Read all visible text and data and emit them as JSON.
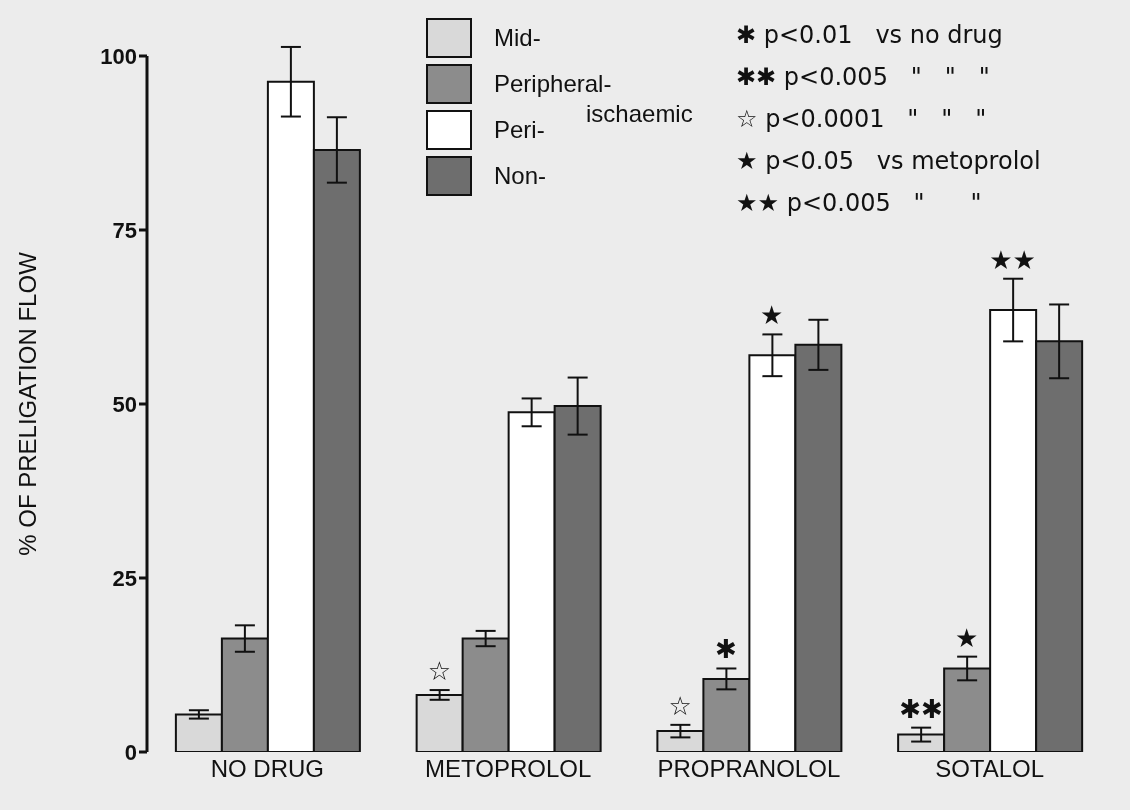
{
  "chart_data": {
    "type": "bar",
    "ylabel": "% OF PRELIGATION FLOW",
    "categories": [
      "NO DRUG",
      "METOPROLOL",
      "PROPRANOLOL",
      "SOTALOL"
    ],
    "series": [
      {
        "name": "Mid-",
        "color": "#d9d9d9",
        "values": [
          5.4,
          8.2,
          3,
          2.5
        ],
        "errors": [
          0.6,
          0.7,
          0.9,
          1
        ]
      },
      {
        "name": "Peripheral-",
        "color": "#8c8c8c",
        "values": [
          16.3,
          16.3,
          10.5,
          12
        ],
        "errors": [
          1.9,
          1.1,
          1.5,
          1.7
        ]
      },
      {
        "name": "Peri-",
        "color": "#ffffff",
        "values": [
          96.3,
          48.8,
          57,
          63.5
        ],
        "errors": [
          5,
          2,
          3,
          4.5
        ]
      },
      {
        "name": "Non-",
        "color": "#6e6e6e",
        "values": [
          86.5,
          49.7,
          58.5,
          59
        ],
        "errors": [
          4.7,
          4.1,
          3.6,
          5.3
        ]
      }
    ],
    "ylim": [
      0,
      100
    ],
    "yticks": [
      0,
      25,
      50,
      75,
      100
    ],
    "grid": false,
    "legend": "top",
    "annotations": [
      "ischaemic",
      "✱ p<0.01   vs no drug",
      "✱✱ p<0.005   \"   \"   \"",
      "☆ p<0.0001   \"   \"   \"",
      "★ p<0.05   vs metoprolol",
      "★★ p<0.005   \"      \"",
      {
        "text": "☆",
        "x": "METOPROLOL",
        "y": 8.2
      },
      {
        "text": "☆",
        "x": "PROPRANOLOL",
        "y": 3
      },
      {
        "text": "✱",
        "x": "PROPRANOLOL",
        "y": 10.5
      },
      {
        "text": "★",
        "x": "PROPRANOLOL",
        "y": 57
      },
      {
        "text": "✱✱",
        "x": "SOTALOL",
        "y": 2.5
      },
      {
        "text": "★",
        "x": "SOTALOL",
        "y": 12
      },
      {
        "text": "★★",
        "x": "SOTALOL",
        "y": 63.5
      }
    ]
  }
}
